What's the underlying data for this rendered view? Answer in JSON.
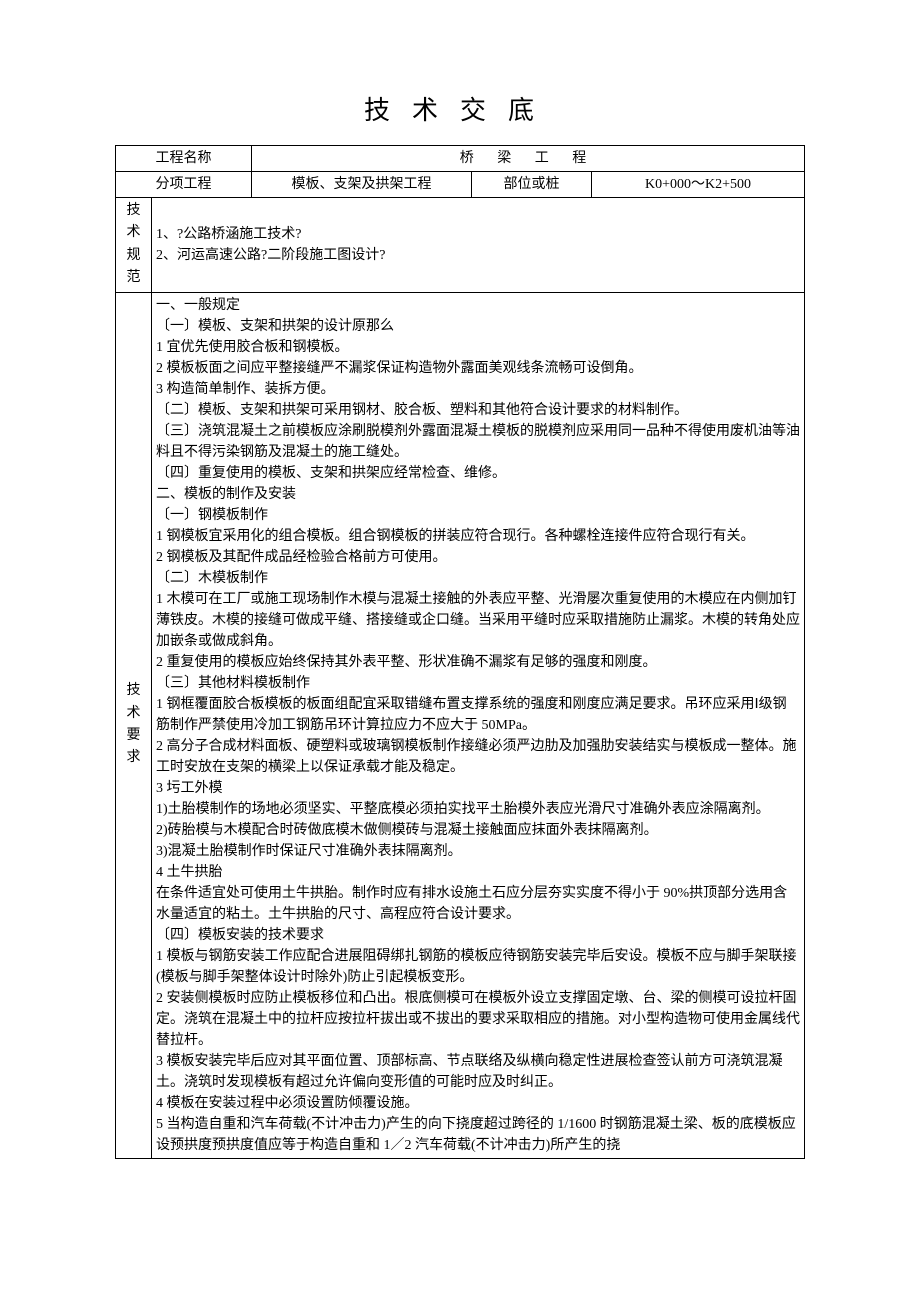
{
  "title": "技术交底",
  "header": {
    "project_name_label": "工程名称",
    "project_name_value": "桥 梁 工 程",
    "subproject_label": "分项工程",
    "subproject_value": "模板、支架及拱架工程",
    "part_label": "部位或桩",
    "part_value": "K0+000～K2+500"
  },
  "spec": {
    "label_chars": [
      "技",
      "术",
      "规",
      "范"
    ],
    "lines": [
      "1、?公路桥涵施工技术?",
      "2、河运高速公路?二阶段施工图设计?"
    ]
  },
  "req": {
    "label_chars": [
      "技",
      "术",
      "要",
      "求"
    ],
    "paragraphs": [
      {
        "cls": "ind1",
        "text": "一、一般规定"
      },
      {
        "cls": "ind2",
        "text": "〔一〕模板、支架和拱架的设计原那么"
      },
      {
        "cls": "ind2",
        "text": "1 宜优先使用胶合板和钢模板。"
      },
      {
        "cls": "ind2",
        "text": "2 模板板面之间应平整接缝严不漏浆保证构造物外露面美观线条流畅可设倒角。"
      },
      {
        "cls": "ind2",
        "text": "3 构造简单制作、装拆方便。"
      },
      {
        "cls": "ind2",
        "text": "〔二〕模板、支架和拱架可采用钢材、胶合板、塑料和其他符合设计要求的材料制作。"
      },
      {
        "cls": "ind2",
        "text": "〔三〕浇筑混凝土之前模板应涂刷脱模剂外露面混凝土模板的脱模剂应采用同一品种不得使用废机油等油料且不得污染钢筋及混凝土的施工缝处。"
      },
      {
        "cls": "ind2",
        "text": "〔四〕重复使用的模板、支架和拱架应经常检查、维修。"
      },
      {
        "cls": "ind1",
        "text": "二、模板的制作及安装"
      },
      {
        "cls": "ind2",
        "text": "〔一〕钢模板制作"
      },
      {
        "cls": "ind2",
        "text": "1 钢模板宜采用化的组合模板。组合钢模板的拼装应符合现行。各种螺栓连接件应符合现行有关。"
      },
      {
        "cls": "ind2",
        "text": "2 钢模板及其配件成品经检验合格前方可使用。"
      },
      {
        "cls": "ind2",
        "text": "〔二〕木模板制作"
      },
      {
        "cls": "ind2",
        "text": "1 木模可在工厂或施工现场制作木模与混凝土接触的外表应平整、光滑屡次重复使用的木模应在内侧加钉薄铁皮。木模的接缝可做成平缝、搭接缝或企口缝。当采用平缝时应采取措施防止漏浆。木模的转角处应加嵌条或做成斜角。"
      },
      {
        "cls": "ind2",
        "text": "2 重复使用的模板应始终保持其外表平整、形状准确不漏浆有足够的强度和刚度。"
      },
      {
        "cls": "ind2",
        "text": "〔三〕其他材料模板制作"
      },
      {
        "cls": "ind2",
        "text": "1 钢框覆面胶合板模板的板面组配宜采取错缝布置支撑系统的强度和刚度应满足要求。吊环应采用Ⅰ级钢筋制作严禁使用冷加工钢筋吊环计算拉应力不应大于 50MPa。"
      },
      {
        "cls": "ind2",
        "text": "2 高分子合成材料面板、硬塑料或玻璃钢模板制作接缝必须严边肋及加强肋安装结实与模板成一整体。施工时安放在支架的横梁上以保证承载才能及稳定。"
      },
      {
        "cls": "ind2",
        "text": "3 圬工外模"
      },
      {
        "cls": "ind2",
        "text": "1)土胎模制作的场地必须坚实、平整底模必须拍实找平土胎模外表应光滑尺寸准确外表应涂隔离剂。"
      },
      {
        "cls": "ind2",
        "text": "2)砖胎模与木模配合时砖做底模木做侧模砖与混凝土接触面应抹面外表抹隔离剂。"
      },
      {
        "cls": "ind2",
        "text": "3)混凝土胎模制作时保证尺寸准确外表抹隔离剂。"
      },
      {
        "cls": "ind2",
        "text": "4 土牛拱胎"
      },
      {
        "cls": "ind2",
        "text": "在条件适宜处可使用土牛拱胎。制作时应有排水设施土石应分层夯实实度不得小于 90%拱顶部分选用含水量适宜的粘土。土牛拱胎的尺寸、高程应符合设计要求。"
      },
      {
        "cls": "ind2",
        "text": "〔四〕模板安装的技术要求"
      },
      {
        "cls": "ind2",
        "text": "1 模板与钢筋安装工作应配合进展阻碍绑扎钢筋的模板应待钢筋安装完毕后安设。模板不应与脚手架联接(模板与脚手架整体设计时除外)防止引起模板变形。"
      },
      {
        "cls": "ind2",
        "text": "2 安装侧模板时应防止模板移位和凸出。根底侧模可在模板外设立支撑固定墩、台、梁的侧模可设拉杆固定。浇筑在混凝土中的拉杆应按拉杆拔出或不拔出的要求采取相应的措施。对小型构造物可使用金属线代替拉杆。"
      },
      {
        "cls": "ind2",
        "text": "3 模板安装完毕后应对其平面位置、顶部标高、节点联络及纵横向稳定性进展检查签认前方可浇筑混凝土。浇筑时发现模板有超过允许偏向变形值的可能时应及时纠正。"
      },
      {
        "cls": "ind2",
        "text": "4 模板在安装过程中必须设置防倾覆设施。"
      },
      {
        "cls": "ind2",
        "text": "5 当构造自重和汽车荷载(不计冲击力)产生的向下挠度超过跨径的 1/1600 时钢筋混凝土梁、板的底模板应设预拱度预拱度值应等于构造自重和 1／2 汽车荷载(不计冲击力)所产生的挠"
      }
    ]
  }
}
